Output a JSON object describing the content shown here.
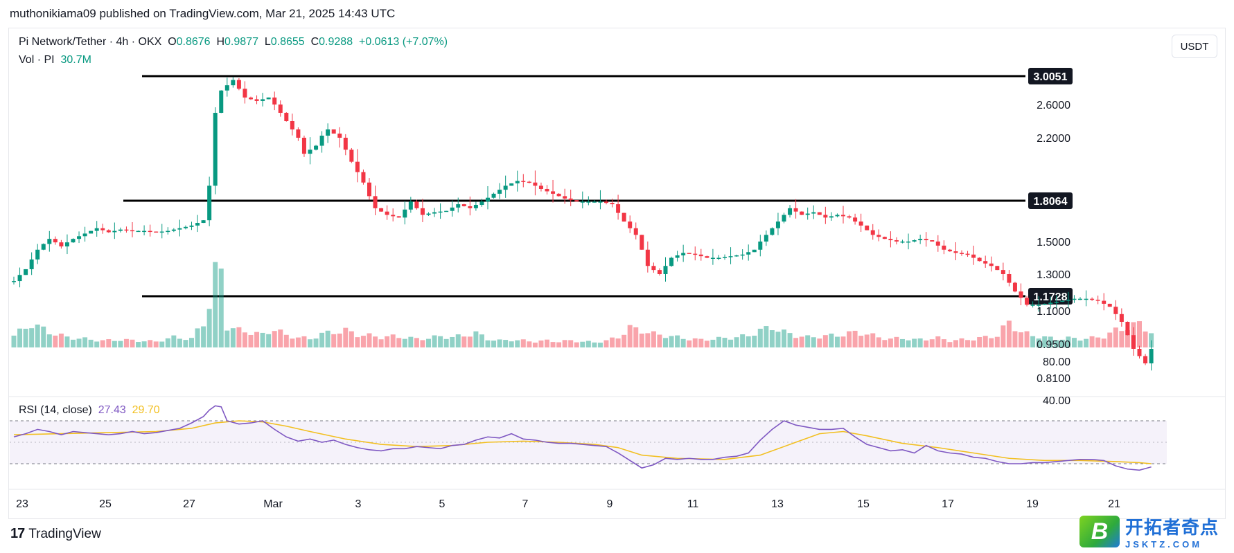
{
  "header": {
    "publisher": "muthonikiama09 published on TradingView.com, Mar 21, 2025 14:43 UTC"
  },
  "legend": {
    "symbol": "Pi Network/Tether · 4h · OKX",
    "o_label": "O",
    "o_value": "0.8676",
    "h_label": "H",
    "h_value": "0.9877",
    "l_label": "L",
    "l_value": "0.8655",
    "c_label": "C",
    "c_value": "0.9288",
    "change": "+0.0613 (+7.07%)",
    "vol_label": "Vol · PI",
    "vol_value": "30.7M",
    "rsi_label": "RSI (14, close)",
    "rsi_value": "27.43",
    "rsi_ma_value": "29.70"
  },
  "unit_button": "USDT",
  "footer": {
    "brand": "TradingView",
    "brand_mark": "17"
  },
  "watermark": {
    "cn": "开拓者奇点",
    "en": "JSKTZ.COM",
    "badge": "B"
  },
  "colors": {
    "up": "#089981",
    "down": "#f23645",
    "rsi": "#7e57c2",
    "rsi_ma": "#f2bf1f",
    "level": "#000000"
  },
  "chart_data": {
    "type": "candlestick",
    "interval": "4h",
    "x_tick_labels": [
      "23",
      "25",
      "27",
      "Mar",
      "3",
      "5",
      "7",
      "9",
      "11",
      "13",
      "15",
      "17",
      "19",
      "21"
    ],
    "y_tick_labels": [
      "2.6000",
      "2.2000",
      "1.5000",
      "1.3000",
      "1.1000",
      "0.9500",
      "0.8100"
    ],
    "levels": [
      "3.0051",
      "1.8064",
      "1.1728"
    ],
    "rsi_ticks": [
      "80.00",
      "40.00"
    ],
    "rsi_band": [
      30,
      70
    ],
    "price_points": [
      [
        0,
        1.26
      ],
      [
        2,
        1.33
      ],
      [
        4,
        1.45
      ],
      [
        6,
        1.52
      ],
      [
        8,
        1.47
      ],
      [
        10,
        1.52
      ],
      [
        12,
        1.56
      ],
      [
        14,
        1.6
      ],
      [
        16,
        1.57
      ],
      [
        18,
        1.59
      ],
      [
        20,
        1.58
      ],
      [
        22,
        1.58
      ],
      [
        24,
        1.57
      ],
      [
        26,
        1.58
      ],
      [
        28,
        1.6
      ],
      [
        30,
        1.62
      ],
      [
        32,
        1.66
      ],
      [
        33,
        1.9
      ],
      [
        34,
        2.5
      ],
      [
        35,
        2.8
      ],
      [
        37,
        2.95
      ],
      [
        39,
        2.7
      ],
      [
        41,
        2.65
      ],
      [
        43,
        2.7
      ],
      [
        45,
        2.5
      ],
      [
        47,
        2.3
      ],
      [
        49,
        2.1
      ],
      [
        51,
        2.15
      ],
      [
        53,
        2.3
      ],
      [
        55,
        2.2
      ],
      [
        57,
        2.05
      ],
      [
        59,
        1.92
      ],
      [
        61,
        1.75
      ],
      [
        63,
        1.7
      ],
      [
        65,
        1.68
      ],
      [
        67,
        1.8
      ],
      [
        69,
        1.7
      ],
      [
        71,
        1.72
      ],
      [
        73,
        1.73
      ],
      [
        75,
        1.78
      ],
      [
        77,
        1.75
      ],
      [
        79,
        1.8
      ],
      [
        81,
        1.85
      ],
      [
        83,
        1.9
      ],
      [
        85,
        1.93
      ],
      [
        87,
        1.92
      ],
      [
        89,
        1.88
      ],
      [
        91,
        1.85
      ],
      [
        93,
        1.82
      ],
      [
        95,
        1.8
      ],
      [
        97,
        1.8
      ],
      [
        99,
        1.8
      ],
      [
        101,
        1.78
      ],
      [
        103,
        1.65
      ],
      [
        105,
        1.55
      ],
      [
        107,
        1.35
      ],
      [
        109,
        1.3
      ],
      [
        111,
        1.4
      ],
      [
        113,
        1.43
      ],
      [
        115,
        1.42
      ],
      [
        117,
        1.4
      ],
      [
        119,
        1.4
      ],
      [
        121,
        1.41
      ],
      [
        123,
        1.42
      ],
      [
        125,
        1.45
      ],
      [
        127,
        1.55
      ],
      [
        129,
        1.65
      ],
      [
        131,
        1.75
      ],
      [
        133,
        1.7
      ],
      [
        135,
        1.72
      ],
      [
        137,
        1.68
      ],
      [
        139,
        1.7
      ],
      [
        141,
        1.68
      ],
      [
        143,
        1.62
      ],
      [
        145,
        1.55
      ],
      [
        147,
        1.52
      ],
      [
        149,
        1.5
      ],
      [
        151,
        1.5
      ],
      [
        153,
        1.52
      ],
      [
        155,
        1.5
      ],
      [
        157,
        1.45
      ],
      [
        159,
        1.43
      ],
      [
        161,
        1.42
      ],
      [
        163,
        1.38
      ],
      [
        165,
        1.35
      ],
      [
        167,
        1.3
      ],
      [
        169,
        1.2
      ],
      [
        171,
        1.13
      ],
      [
        173,
        1.13
      ],
      [
        175,
        1.14
      ],
      [
        177,
        1.15
      ],
      [
        179,
        1.16
      ],
      [
        181,
        1.16
      ],
      [
        183,
        1.15
      ],
      [
        185,
        1.12
      ],
      [
        187,
        1.05
      ],
      [
        189,
        0.93
      ],
      [
        191,
        0.87
      ],
      [
        192,
        0.93
      ]
    ],
    "volume_points": [
      [
        0,
        14
      ],
      [
        3,
        28
      ],
      [
        6,
        18
      ],
      [
        9,
        12
      ],
      [
        12,
        10
      ],
      [
        15,
        8
      ],
      [
        18,
        9
      ],
      [
        21,
        8
      ],
      [
        24,
        7
      ],
      [
        27,
        12
      ],
      [
        30,
        10
      ],
      [
        32,
        30
      ],
      [
        33,
        50
      ],
      [
        34,
        85
      ],
      [
        35,
        90
      ],
      [
        36,
        25
      ],
      [
        38,
        20
      ],
      [
        40,
        18
      ],
      [
        42,
        15
      ],
      [
        44,
        22
      ],
      [
        46,
        14
      ],
      [
        48,
        12
      ],
      [
        50,
        10
      ],
      [
        52,
        16
      ],
      [
        54,
        18
      ],
      [
        56,
        20
      ],
      [
        58,
        15
      ],
      [
        60,
        14
      ],
      [
        62,
        12
      ],
      [
        64,
        13
      ],
      [
        66,
        12
      ],
      [
        68,
        10
      ],
      [
        70,
        11
      ],
      [
        72,
        13
      ],
      [
        74,
        12
      ],
      [
        76,
        14
      ],
      [
        78,
        17
      ],
      [
        80,
        10
      ],
      [
        82,
        8
      ],
      [
        84,
        9
      ],
      [
        86,
        8
      ],
      [
        88,
        7
      ],
      [
        90,
        8
      ],
      [
        92,
        7
      ],
      [
        94,
        8
      ],
      [
        96,
        7
      ],
      [
        98,
        6
      ],
      [
        100,
        8
      ],
      [
        102,
        12
      ],
      [
        104,
        23
      ],
      [
        106,
        20
      ],
      [
        108,
        16
      ],
      [
        110,
        14
      ],
      [
        112,
        12
      ],
      [
        114,
        10
      ],
      [
        116,
        9
      ],
      [
        118,
        10
      ],
      [
        120,
        11
      ],
      [
        122,
        12
      ],
      [
        124,
        14
      ],
      [
        126,
        20
      ],
      [
        128,
        24
      ],
      [
        130,
        18
      ],
      [
        132,
        14
      ],
      [
        134,
        12
      ],
      [
        136,
        13
      ],
      [
        138,
        14
      ],
      [
        140,
        15
      ],
      [
        142,
        18
      ],
      [
        144,
        16
      ],
      [
        146,
        12
      ],
      [
        148,
        10
      ],
      [
        150,
        11
      ],
      [
        152,
        9
      ],
      [
        154,
        10
      ],
      [
        156,
        11
      ],
      [
        158,
        8
      ],
      [
        160,
        9
      ],
      [
        162,
        10
      ],
      [
        164,
        12
      ],
      [
        166,
        14
      ],
      [
        168,
        30
      ],
      [
        170,
        18
      ],
      [
        172,
        14
      ],
      [
        174,
        12
      ],
      [
        176,
        10
      ],
      [
        178,
        11
      ],
      [
        180,
        10
      ],
      [
        182,
        11
      ],
      [
        184,
        13
      ],
      [
        186,
        20
      ],
      [
        188,
        24
      ],
      [
        190,
        28
      ],
      [
        192,
        18
      ]
    ],
    "rsi_points": [
      [
        0,
        55
      ],
      [
        2,
        58
      ],
      [
        4,
        62
      ],
      [
        6,
        60
      ],
      [
        8,
        57
      ],
      [
        10,
        60
      ],
      [
        12,
        59
      ],
      [
        14,
        58
      ],
      [
        16,
        57
      ],
      [
        18,
        58
      ],
      [
        20,
        60
      ],
      [
        22,
        58
      ],
      [
        24,
        59
      ],
      [
        26,
        61
      ],
      [
        28,
        63
      ],
      [
        30,
        68
      ],
      [
        32,
        74
      ],
      [
        33,
        80
      ],
      [
        34,
        84
      ],
      [
        35,
        83
      ],
      [
        36,
        70
      ],
      [
        38,
        67
      ],
      [
        40,
        68
      ],
      [
        42,
        70
      ],
      [
        44,
        62
      ],
      [
        46,
        55
      ],
      [
        48,
        51
      ],
      [
        50,
        53
      ],
      [
        52,
        50
      ],
      [
        54,
        52
      ],
      [
        56,
        48
      ],
      [
        58,
        45
      ],
      [
        60,
        43
      ],
      [
        62,
        42
      ],
      [
        64,
        44
      ],
      [
        66,
        44
      ],
      [
        68,
        46
      ],
      [
        70,
        45
      ],
      [
        72,
        44
      ],
      [
        74,
        47
      ],
      [
        76,
        48
      ],
      [
        78,
        52
      ],
      [
        80,
        55
      ],
      [
        82,
        54
      ],
      [
        84,
        58
      ],
      [
        86,
        53
      ],
      [
        88,
        52
      ],
      [
        90,
        50
      ],
      [
        92,
        49
      ],
      [
        94,
        49
      ],
      [
        96,
        48
      ],
      [
        98,
        47
      ],
      [
        100,
        46
      ],
      [
        102,
        40
      ],
      [
        104,
        33
      ],
      [
        106,
        26
      ],
      [
        108,
        29
      ],
      [
        110,
        35
      ],
      [
        112,
        34
      ],
      [
        114,
        35
      ],
      [
        116,
        34
      ],
      [
        118,
        34
      ],
      [
        120,
        36
      ],
      [
        122,
        37
      ],
      [
        124,
        40
      ],
      [
        126,
        52
      ],
      [
        128,
        62
      ],
      [
        130,
        70
      ],
      [
        132,
        66
      ],
      [
        134,
        64
      ],
      [
        136,
        62
      ],
      [
        138,
        62
      ],
      [
        140,
        63
      ],
      [
        142,
        55
      ],
      [
        144,
        48
      ],
      [
        146,
        45
      ],
      [
        148,
        42
      ],
      [
        150,
        43
      ],
      [
        152,
        40
      ],
      [
        154,
        47
      ],
      [
        156,
        42
      ],
      [
        158,
        40
      ],
      [
        160,
        39
      ],
      [
        162,
        36
      ],
      [
        164,
        35
      ],
      [
        166,
        32
      ],
      [
        168,
        30
      ],
      [
        170,
        30
      ],
      [
        172,
        31
      ],
      [
        174,
        31
      ],
      [
        176,
        32
      ],
      [
        178,
        33
      ],
      [
        180,
        34
      ],
      [
        182,
        34
      ],
      [
        184,
        33
      ],
      [
        186,
        28
      ],
      [
        188,
        25
      ],
      [
        190,
        24
      ],
      [
        192,
        27
      ]
    ],
    "rsi_ma_points": [
      [
        0,
        57
      ],
      [
        8,
        58
      ],
      [
        16,
        59
      ],
      [
        24,
        60
      ],
      [
        30,
        63
      ],
      [
        34,
        68
      ],
      [
        38,
        70
      ],
      [
        42,
        69
      ],
      [
        46,
        65
      ],
      [
        50,
        60
      ],
      [
        56,
        53
      ],
      [
        62,
        48
      ],
      [
        68,
        46
      ],
      [
        74,
        47
      ],
      [
        80,
        50
      ],
      [
        86,
        51
      ],
      [
        92,
        50
      ],
      [
        98,
        48
      ],
      [
        102,
        45
      ],
      [
        106,
        38
      ],
      [
        112,
        35
      ],
      [
        120,
        34
      ],
      [
        126,
        38
      ],
      [
        132,
        50
      ],
      [
        136,
        58
      ],
      [
        140,
        60
      ],
      [
        144,
        56
      ],
      [
        150,
        49
      ],
      [
        156,
        45
      ],
      [
        162,
        40
      ],
      [
        168,
        35
      ],
      [
        174,
        33
      ],
      [
        180,
        33
      ],
      [
        186,
        32
      ],
      [
        190,
        31
      ],
      [
        192,
        30
      ]
    ]
  }
}
